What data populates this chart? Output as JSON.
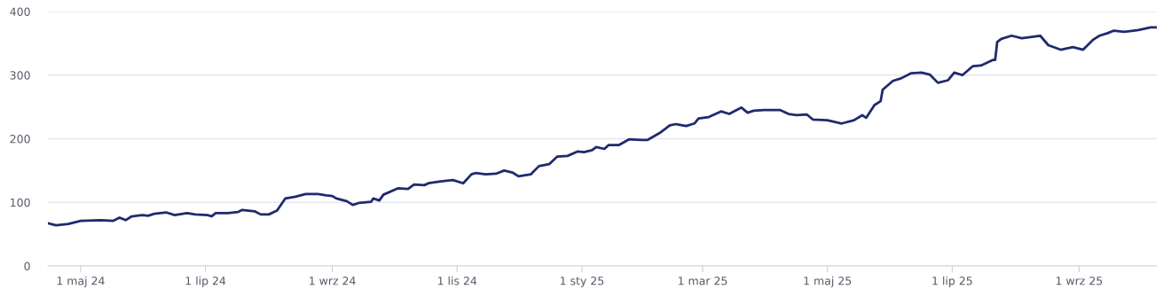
{
  "chart_data": {
    "type": "line",
    "grid": "y",
    "legend": false,
    "marker": "none",
    "line_style": "solid",
    "xlim": [
      "2024-04-15",
      "2025-10-09"
    ],
    "ylim": [
      0,
      400
    ],
    "yticks": [
      0,
      100,
      200,
      300,
      400
    ],
    "xticks": [
      {
        "value": "2024-05-01",
        "label": "1 maj 24"
      },
      {
        "value": "2024-07-01",
        "label": "1 lip 24"
      },
      {
        "value": "2024-09-01",
        "label": "1 wrz 24"
      },
      {
        "value": "2024-11-01",
        "label": "1 lis 24"
      },
      {
        "value": "2025-01-01",
        "label": "1 sty 25"
      },
      {
        "value": "2025-03-01",
        "label": "1 mar 25"
      },
      {
        "value": "2025-05-01",
        "label": "1 maj 25"
      },
      {
        "value": "2025-07-01",
        "label": "1 lip 25"
      },
      {
        "value": "2025-09-01",
        "label": "1 wrz 25"
      }
    ],
    "x": [
      "2024-04-15",
      "2024-04-19",
      "2024-04-25",
      "2024-05-01",
      "2024-05-11",
      "2024-05-17",
      "2024-05-20",
      "2024-05-23",
      "2024-05-26",
      "2024-05-31",
      "2024-06-03",
      "2024-06-06",
      "2024-06-12",
      "2024-06-16",
      "2024-06-22",
      "2024-06-26",
      "2024-07-02",
      "2024-07-04",
      "2024-07-06",
      "2024-07-12",
      "2024-07-17",
      "2024-07-19",
      "2024-07-25",
      "2024-07-28",
      "2024-08-01",
      "2024-08-05",
      "2024-08-09",
      "2024-08-14",
      "2024-08-19",
      "2024-08-25",
      "2024-08-29",
      "2024-09-01",
      "2024-09-03",
      "2024-09-08",
      "2024-09-11",
      "2024-09-14",
      "2024-09-20",
      "2024-09-21",
      "2024-09-24",
      "2024-09-26",
      "2024-10-03",
      "2024-10-08",
      "2024-10-11",
      "2024-10-16",
      "2024-10-18",
      "2024-10-24",
      "2024-10-30",
      "2024-11-04",
      "2024-11-08",
      "2024-11-10",
      "2024-11-15",
      "2024-11-20",
      "2024-11-24",
      "2024-11-28",
      "2024-12-01",
      "2024-12-07",
      "2024-12-11",
      "2024-12-16",
      "2024-12-20",
      "2024-12-25",
      "2024-12-30",
      "2025-01-02",
      "2025-01-06",
      "2025-01-08",
      "2025-01-12",
      "2025-01-14",
      "2025-01-19",
      "2025-01-24",
      "2025-01-30",
      "2025-02-02",
      "2025-02-08",
      "2025-02-13",
      "2025-02-16",
      "2025-02-21",
      "2025-02-25",
      "2025-02-27",
      "2025-03-04",
      "2025-03-10",
      "2025-03-14",
      "2025-03-20",
      "2025-03-23",
      "2025-03-26",
      "2025-03-31",
      "2025-04-08",
      "2025-04-12",
      "2025-04-16",
      "2025-04-21",
      "2025-04-24",
      "2025-05-01",
      "2025-05-08",
      "2025-05-14",
      "2025-05-18",
      "2025-05-20",
      "2025-05-24",
      "2025-05-27",
      "2025-05-28",
      "2025-06-02",
      "2025-06-06",
      "2025-06-11",
      "2025-06-16",
      "2025-06-20",
      "2025-06-24",
      "2025-06-29",
      "2025-07-02",
      "2025-07-06",
      "2025-07-11",
      "2025-07-15",
      "2025-07-21",
      "2025-07-22",
      "2025-07-23",
      "2025-07-25",
      "2025-07-30",
      "2025-08-04",
      "2025-08-13",
      "2025-08-17",
      "2025-08-23",
      "2025-08-29",
      "2025-09-03",
      "2025-09-08",
      "2025-09-11",
      "2025-09-15",
      "2025-09-18",
      "2025-09-23",
      "2025-09-30",
      "2025-10-06",
      "2025-10-09"
    ],
    "series": [
      {
        "color": "#1f2a6e",
        "values": [
          67,
          64,
          66,
          71,
          72,
          71,
          76,
          72,
          78,
          80,
          79,
          82,
          84,
          80,
          83,
          81,
          80,
          78,
          83,
          83,
          85,
          88,
          86,
          81,
          81,
          87,
          106,
          109,
          113,
          113,
          111,
          110,
          106,
          102,
          96,
          99,
          101,
          106,
          103,
          112,
          122,
          121,
          128,
          127,
          130,
          133,
          135,
          130,
          144,
          146,
          144,
          145,
          150,
          147,
          141,
          144,
          157,
          160,
          172,
          173,
          180,
          179,
          182,
          187,
          184,
          190,
          190,
          199,
          198,
          198,
          209,
          221,
          223,
          220,
          224,
          232,
          234,
          243,
          239,
          249,
          241,
          244,
          245,
          245,
          239,
          237,
          238,
          230,
          229,
          224,
          229,
          237,
          233,
          253,
          259,
          277,
          291,
          295,
          303,
          304,
          301,
          288,
          292,
          304,
          300,
          314,
          315,
          324,
          324,
          352,
          357,
          362,
          358,
          362,
          347,
          340,
          344,
          340,
          356,
          362,
          366,
          370,
          368,
          371,
          375,
          375
        ]
      }
    ]
  }
}
